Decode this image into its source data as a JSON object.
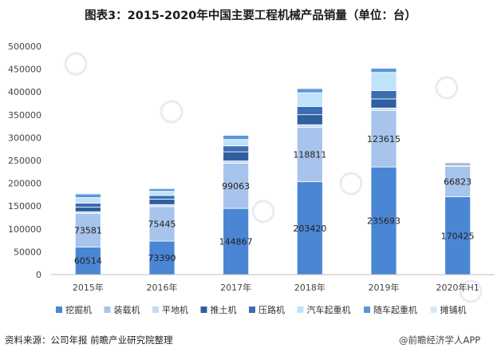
{
  "title": "图表3：2015-2020年中国主要工程机械产品销量（单位：台）",
  "source": "资料来源：公司年报 前瞻产业研究院整理",
  "watermark_text": "@前瞻经济学人APP",
  "chart_data": {
    "type": "bar",
    "stacked": true,
    "title": "图表3：2015-2020年中国主要工程机械产品销量（单位：台）",
    "xlabel": "",
    "ylabel": "",
    "ylim": [
      0,
      500000
    ],
    "yticks": [
      0,
      50000,
      100000,
      150000,
      200000,
      250000,
      300000,
      350000,
      400000,
      450000,
      500000
    ],
    "ytick_labels": [
      "0",
      "50000",
      "100000",
      "150000",
      "200000",
      "250000",
      "300000",
      "350000",
      "400000",
      "450000",
      "500000"
    ],
    "grid": false,
    "legend_position": "bottom",
    "categories": [
      "2015年",
      "2016年",
      "2017年",
      "2018年",
      "2019年",
      "2020年H1"
    ],
    "series": [
      {
        "name": "挖掘机",
        "color": "#4a86d4",
        "values": [
          60514,
          73390,
          144867,
          203420,
          235693,
          170425
        ],
        "labeled": true
      },
      {
        "name": "装载机",
        "color": "#a6c4ec",
        "values": [
          73581,
          75445,
          99063,
          118811,
          123615,
          66823
        ],
        "labeled": true
      },
      {
        "name": "平地机",
        "color": "#c6dbf4",
        "values": [
          3500,
          4500,
          5000,
          6000,
          5500,
          2500
        ]
      },
      {
        "name": "推土机",
        "color": "#2f5f9e",
        "values": [
          10000,
          12000,
          20000,
          22000,
          20000,
          3000
        ]
      },
      {
        "name": "压路机",
        "color": "#3a6db2",
        "values": [
          9000,
          8000,
          13000,
          18000,
          18000,
          2000
        ]
      },
      {
        "name": "汽车起重机",
        "color": "#bfe3f8",
        "values": [
          12000,
          9000,
          14000,
          30000,
          40000,
          0
        ]
      },
      {
        "name": "随车起重机",
        "color": "#5b96da",
        "values": [
          8000,
          6000,
          9000,
          9000,
          9000,
          0
        ]
      },
      {
        "name": "摊铺机",
        "color": "#d9e8f7",
        "values": [
          2500,
          2000,
          2000,
          2500,
          2500,
          0
        ]
      }
    ]
  }
}
